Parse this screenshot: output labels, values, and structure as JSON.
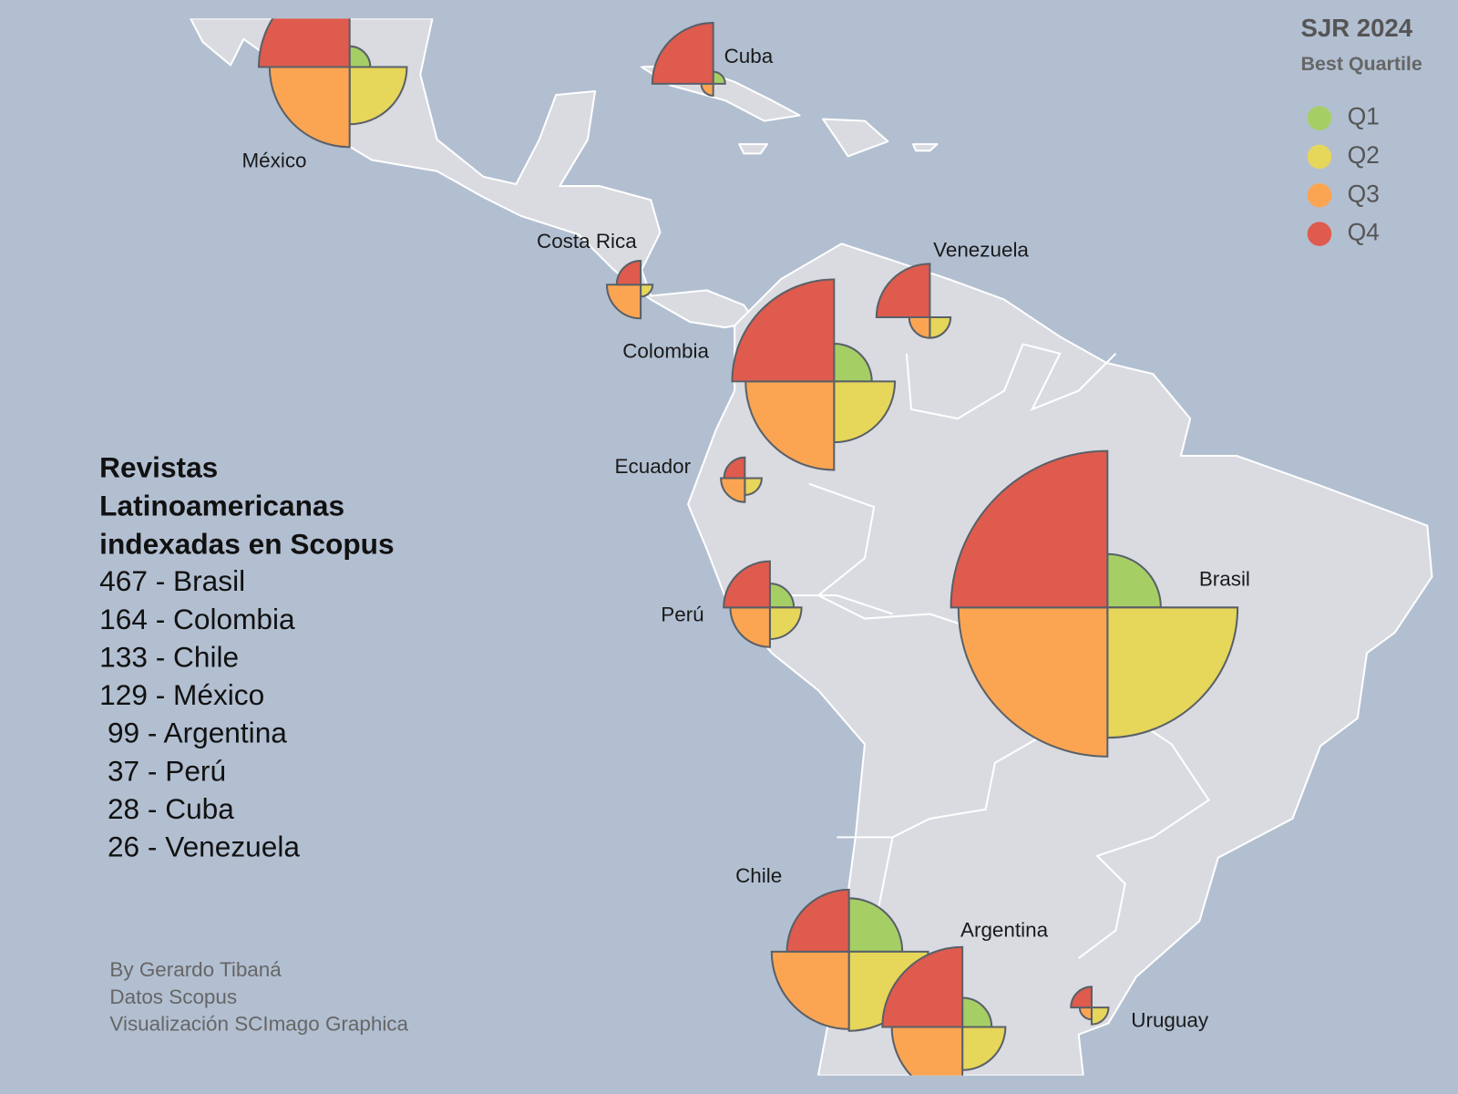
{
  "chart_data": {
    "type": "quarter-pie",
    "categories": [
      "México",
      "Cuba",
      "Costa Rica",
      "Venezuela",
      "Colombia",
      "Ecuador",
      "Perú",
      "Brasil",
      "Chile",
      "Argentina",
      "Uruguay"
    ],
    "series": [
      {
        "name": "Q1",
        "color": "#a5cf65",
        "values": [
          3,
          1,
          0,
          0,
          10,
          0,
          4,
          20,
          20,
          6,
          0
        ]
      },
      {
        "name": "Q2",
        "color": "#e6d65a",
        "values": [
          23,
          0,
          1,
          3,
          26,
          2,
          7,
          119,
          44,
          13,
          2
        ]
      },
      {
        "name": "Q3",
        "color": "#fba552",
        "values": [
          45,
          1,
          8,
          3,
          55,
          4,
          11,
          156,
          42,
          35,
          1
        ]
      },
      {
        "name": "Q4",
        "color": "#df5b4d",
        "values": [
          58,
          26,
          4,
          20,
          73,
          3,
          15,
          172,
          27,
          45,
          3
        ]
      }
    ],
    "legend_title": "SJR 2024",
    "legend_subtitle": "Best Quartile",
    "legend_position": "top-right",
    "title": [
      "Revistas",
      "Latinoamericanas",
      "indexadas en Scopus"
    ],
    "totals": [
      "467 - Brasil",
      "164 - Colombia",
      "133 - Chile",
      "129 - México",
      " 99 - Argentina",
      " 37 - Perú",
      " 28 - Cuba",
      " 26 - Venezuela"
    ],
    "credits": [
      "By Gerardo Tibaná",
      "Datos Scopus",
      "Visualización SCImago Graphica"
    ]
  }
}
